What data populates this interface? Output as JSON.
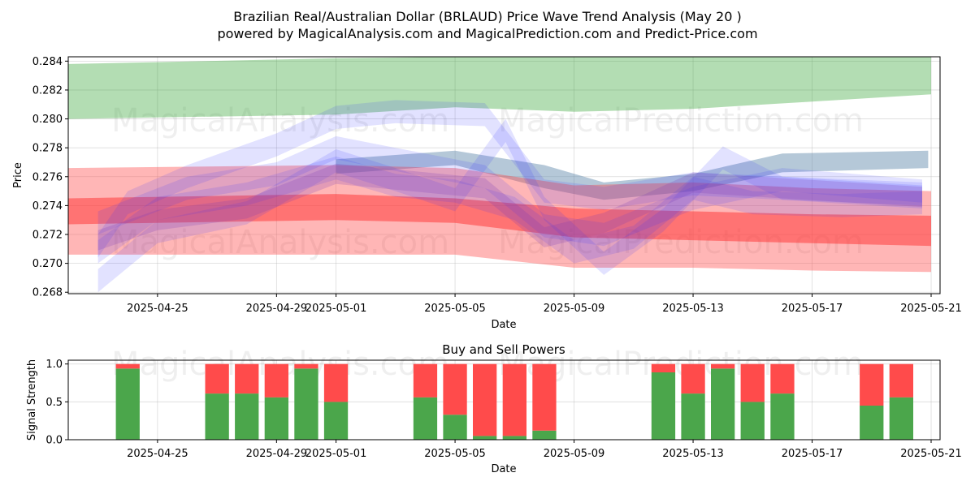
{
  "chart_data": [
    {
      "type": "area",
      "name": "price-wave-chart",
      "title_line1": "Brazilian Real/Australian Dollar (BRLAUD) Price Wave Trend Analysis (May 20 )",
      "title_line2": "powered by MagicalAnalysis.com and MagicalPrediction.com and Predict-Price.com",
      "xlabel": "Date",
      "ylabel": "Price",
      "x_date_range": [
        "2025-04-22",
        "2025-05-21.3"
      ],
      "ylim": [
        0.2679,
        0.2843
      ],
      "x_ticks": [
        "2025-04-25",
        "2025-04-29",
        "2025-05-01",
        "2025-05-05",
        "2025-05-09",
        "2025-05-13",
        "2025-05-17",
        "2025-05-21"
      ],
      "y_ticks": [
        0.268,
        0.27,
        0.272,
        0.274,
        0.276,
        0.278,
        0.28,
        0.282,
        0.284
      ],
      "y_tick_labels": [
        "0.268",
        "0.270",
        "0.272",
        "0.274",
        "0.276",
        "0.278",
        "0.280",
        "0.282",
        "0.284"
      ],
      "grid": true,
      "watermarks": [
        "MagicalAnalysis.com",
        "MagicalPrediction.com"
      ],
      "bands": [
        {
          "name": "green-upper-band",
          "color": "#2ca02c",
          "opacity": 0.36,
          "x": [
            "2025-04-22",
            "2025-05-01",
            "2025-05-05",
            "2025-05-09",
            "2025-05-13",
            "2025-05-17",
            "2025-05-21"
          ],
          "upper": [
            0.2838,
            0.2842,
            0.2843,
            0.2843,
            0.2843,
            0.2843,
            0.2843
          ],
          "lower": [
            0.28,
            0.2803,
            0.2808,
            0.2805,
            0.2807,
            0.2812,
            0.2817
          ]
        },
        {
          "name": "gray-blue-band",
          "color": "#5b84a8",
          "opacity": 0.45,
          "x": [
            "2025-05-01",
            "2025-05-05",
            "2025-05-08",
            "2025-05-10",
            "2025-05-13",
            "2025-05-16",
            "2025-05-20.9"
          ],
          "upper": [
            0.2772,
            0.2778,
            0.2768,
            0.2756,
            0.2762,
            0.2776,
            0.2778
          ],
          "lower": [
            0.2762,
            0.2768,
            0.2752,
            0.2744,
            0.275,
            0.2763,
            0.2766
          ]
        },
        {
          "name": "red-wide-band",
          "color": "#ff4040",
          "opacity": 0.38,
          "x": [
            "2025-04-22",
            "2025-05-01",
            "2025-05-05",
            "2025-05-09",
            "2025-05-13",
            "2025-05-17",
            "2025-05-21"
          ],
          "upper": [
            0.2766,
            0.2768,
            0.2766,
            0.2754,
            0.2756,
            0.2752,
            0.275
          ],
          "lower": [
            0.2706,
            0.2706,
            0.2706,
            0.2697,
            0.2697,
            0.2695,
            0.2694
          ]
        },
        {
          "name": "red-core-band",
          "color": "#ff3030",
          "opacity": 0.5,
          "x": [
            "2025-04-22",
            "2025-05-01",
            "2025-05-05",
            "2025-05-09",
            "2025-05-13",
            "2025-05-17",
            "2025-05-21"
          ],
          "upper": [
            0.2745,
            0.2748,
            0.2745,
            0.2738,
            0.2736,
            0.2734,
            0.2733
          ],
          "lower": [
            0.2727,
            0.273,
            0.2728,
            0.2718,
            0.2716,
            0.2714,
            0.2712
          ]
        }
      ],
      "waves": [
        {
          "name": "blue-wave-a",
          "color": "#3333ff",
          "opacity": 0.14,
          "width": 0.0016,
          "x": [
            "2025-04-23",
            "2025-04-24",
            "2025-04-26",
            "2025-04-29",
            "2025-05-01",
            "2025-05-03",
            "2025-05-06",
            "2025-05-08",
            "2025-05-10",
            "2025-05-13",
            "2025-05-16",
            "2025-05-20.7"
          ],
          "y": [
            0.2712,
            0.2742,
            0.276,
            0.2782,
            0.2801,
            0.2805,
            0.2803,
            0.275,
            0.2745,
            0.2755,
            0.2752,
            0.2748
          ]
        },
        {
          "name": "blue-wave-b",
          "color": "#3333ff",
          "opacity": 0.14,
          "width": 0.0016,
          "x": [
            "2025-04-23",
            "2025-04-25",
            "2025-04-28",
            "2025-05-01",
            "2025-05-03",
            "2025-05-05",
            "2025-05-06.7",
            "2025-05-08",
            "2025-05-10",
            "2025-05-12",
            "2025-05-14",
            "2025-05-16",
            "2025-05-20.7"
          ],
          "y": [
            0.2688,
            0.2722,
            0.2735,
            0.2771,
            0.2758,
            0.2744,
            0.2792,
            0.2738,
            0.27,
            0.273,
            0.2773,
            0.2752,
            0.2746
          ]
        },
        {
          "name": "blue-wave-c",
          "color": "#3333ff",
          "opacity": 0.14,
          "width": 0.0016,
          "x": [
            "2025-04-23",
            "2025-04-25",
            "2025-04-28",
            "2025-05-01",
            "2025-05-03",
            "2025-05-05",
            "2025-05-07",
            "2025-05-09",
            "2025-05-11",
            "2025-05-13",
            "2025-05-15",
            "2025-05-18",
            "2025-05-20.7"
          ],
          "y": [
            0.2708,
            0.2738,
            0.2748,
            0.2766,
            0.2754,
            0.275,
            0.2738,
            0.2708,
            0.2718,
            0.2752,
            0.2742,
            0.274,
            0.2742
          ]
        },
        {
          "name": "blue-wave-d",
          "color": "#3333ff",
          "opacity": 0.14,
          "width": 0.0016,
          "x": [
            "2025-04-23",
            "2025-04-26",
            "2025-04-29",
            "2025-05-01",
            "2025-05-03",
            "2025-05-06",
            "2025-05-08",
            "2025-05-10",
            "2025-05-13",
            "2025-05-16",
            "2025-05-20.7"
          ],
          "y": [
            0.2728,
            0.2752,
            0.2762,
            0.278,
            0.2772,
            0.276,
            0.2726,
            0.272,
            0.2745,
            0.2758,
            0.275
          ]
        },
        {
          "name": "purple-wave",
          "color": "#7a3db8",
          "opacity": 0.22,
          "width": 0.0014,
          "x": [
            "2025-04-23",
            "2025-04-25",
            "2025-04-28",
            "2025-05-01",
            "2025-05-04",
            "2025-05-06",
            "2025-05-08",
            "2025-05-10",
            "2025-05-13",
            "2025-05-16",
            "2025-05-20.7"
          ],
          "y": [
            0.2716,
            0.273,
            0.2738,
            0.2762,
            0.2756,
            0.2752,
            0.2718,
            0.2728,
            0.2756,
            0.2752,
            0.2746
          ]
        }
      ]
    },
    {
      "type": "bar",
      "name": "buy-sell-chart",
      "title": "Buy and Sell Powers",
      "xlabel": "Date",
      "ylabel": "Signal Strength",
      "x_date_range": [
        "2025-04-22",
        "2025-05-21.3"
      ],
      "ylim": [
        0,
        1.05
      ],
      "y_ticks": [
        0.0,
        0.5,
        1.0
      ],
      "y_tick_labels": [
        "0.0",
        "0.5",
        "1.0"
      ],
      "x_ticks": [
        "2025-04-25",
        "2025-04-29",
        "2025-05-01",
        "2025-05-05",
        "2025-05-09",
        "2025-05-13",
        "2025-05-17",
        "2025-05-21"
      ],
      "grid": true,
      "series": [
        {
          "name": "Buy",
          "color": "#4ba64b"
        },
        {
          "name": "Sell",
          "color": "#ff4b4b"
        }
      ],
      "categories": [
        "2025-04-24",
        "2025-04-27",
        "2025-04-28",
        "2025-04-29",
        "2025-04-30",
        "2025-05-01",
        "2025-05-04",
        "2025-05-05",
        "2025-05-06",
        "2025-05-07",
        "2025-05-08",
        "2025-05-12",
        "2025-05-13",
        "2025-05-14",
        "2025-05-15",
        "2025-05-16",
        "2025-05-19",
        "2025-05-20"
      ],
      "buy": [
        0.94,
        0.61,
        0.61,
        0.56,
        0.94,
        0.5,
        0.56,
        0.33,
        0.05,
        0.05,
        0.12,
        0.89,
        0.61,
        0.94,
        0.5,
        0.61,
        0.45,
        0.56
      ],
      "sell": [
        0.06,
        0.39,
        0.39,
        0.44,
        0.06,
        0.5,
        0.44,
        0.67,
        0.95,
        0.95,
        0.88,
        0.11,
        0.39,
        0.06,
        0.5,
        0.39,
        0.55,
        0.44
      ]
    }
  ]
}
